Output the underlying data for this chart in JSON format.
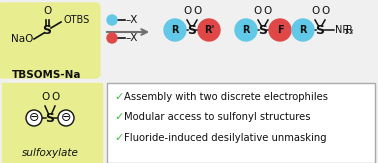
{
  "bg_color": "#f0f0f0",
  "yellow_bg": "#e8ee90",
  "cyan_circle": "#62c8e8",
  "red_circle": "#e04848",
  "arrow_color": "#707070",
  "text_color": "#111111",
  "green_check_color": "#44bb44",
  "box_border_color": "#aaaaaa",
  "bullet_texts": [
    "Assembly with two discrete electrophiles",
    "Modular access to sulfonyl structures",
    "Fluoride-induced desilylative unmasking"
  ],
  "fig_width": 3.78,
  "fig_height": 1.63,
  "dpi": 100
}
